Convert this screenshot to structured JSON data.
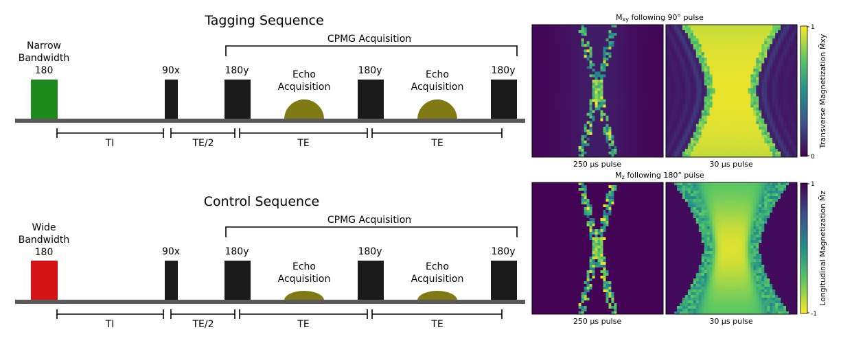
{
  "sequences": [
    {
      "title": "Tagging Sequence",
      "inversion_pulse_label_lines": [
        "Narrow",
        "Bandwidth",
        "180"
      ],
      "inversion_pulse_color": "#1e8a1e",
      "echo_shape": "tall",
      "cpmg_label": "CPMG Acquisition",
      "pulse_labels": [
        "90x",
        "180y",
        "180y",
        "180y"
      ],
      "echo_label_lines": [
        "Echo",
        "Acquisition"
      ],
      "intervals": [
        "TI",
        "TE/2",
        "TE",
        "TE"
      ]
    },
    {
      "title": "Control Sequence",
      "inversion_pulse_label_lines": [
        "Wide",
        "Bandwidth",
        "180"
      ],
      "inversion_pulse_color": "#d41414",
      "echo_shape": "flat",
      "cpmg_label": "CPMG Acquisition",
      "pulse_labels": [
        "90x",
        "180y",
        "180y",
        "180y"
      ],
      "echo_label_lines": [
        "Echo",
        "Acquisition"
      ],
      "intervals": [
        "TI",
        "TE/2",
        "TE",
        "TE"
      ]
    }
  ],
  "colors": {
    "pulse": "#1a1a1a",
    "echo": "#7f7a14",
    "baseline": "#5a5a5a"
  },
  "heatmaps": [
    {
      "title_main": "M",
      "title_sub": "xy",
      "title_rest": " following 90° pulse",
      "left_caption": "250 μs pulse",
      "right_caption": "30 μs pulse",
      "colorbar_label": "Transverse Magnetization M̄xy",
      "colorbar_top": "1",
      "colorbar_bottom": "0",
      "colormap": "viridis"
    },
    {
      "title_main": "M",
      "title_sub": "z",
      "title_rest": " following 180° pulse",
      "left_caption": "250 μs pulse",
      "right_caption": "30 μs pulse",
      "colorbar_label": "Longitudinal Magnetization M̄z",
      "colorbar_top": "1",
      "colorbar_bottom": "-1",
      "colormap": "viridis_r"
    }
  ]
}
